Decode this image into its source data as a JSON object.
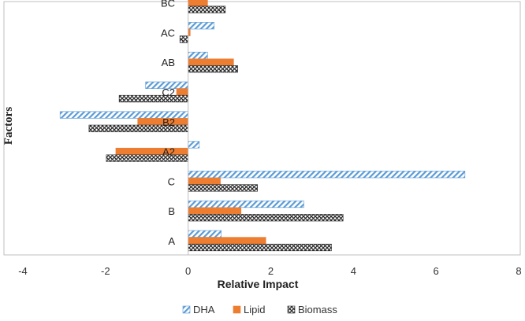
{
  "chart_data": {
    "type": "bar",
    "orientation": "horizontal",
    "categories": [
      "A",
      "B",
      "C",
      "A2",
      "B2",
      "C2",
      "AB",
      "AC",
      "BC"
    ],
    "series": [
      {
        "name": "DHA",
        "values": [
          0.8,
          2.8,
          6.7,
          0.27,
          -3.1,
          -1.03,
          0.47,
          0.63,
          0.5
        ],
        "color": "#5b9bd5",
        "pattern": "diagonal-stripes"
      },
      {
        "name": "Lipid",
        "values": [
          1.88,
          1.28,
          0.78,
          -1.75,
          -1.22,
          -0.28,
          1.1,
          0.05,
          0.47
        ],
        "color": "#ed7d31",
        "pattern": "solid"
      },
      {
        "name": "Biomass",
        "values": [
          3.47,
          3.75,
          1.68,
          -1.98,
          -2.4,
          -1.67,
          1.2,
          -0.2,
          0.9
        ],
        "color": "#2b2b2b",
        "pattern": "crosshatch"
      }
    ],
    "xlabel": "Relative Impact",
    "ylabel": "Factors",
    "xlim": [
      -4,
      8
    ],
    "xticks": [
      "-4",
      "-2",
      "0",
      "2",
      "4",
      "6",
      "8"
    ],
    "grid": false,
    "legend_position": "bottom"
  }
}
